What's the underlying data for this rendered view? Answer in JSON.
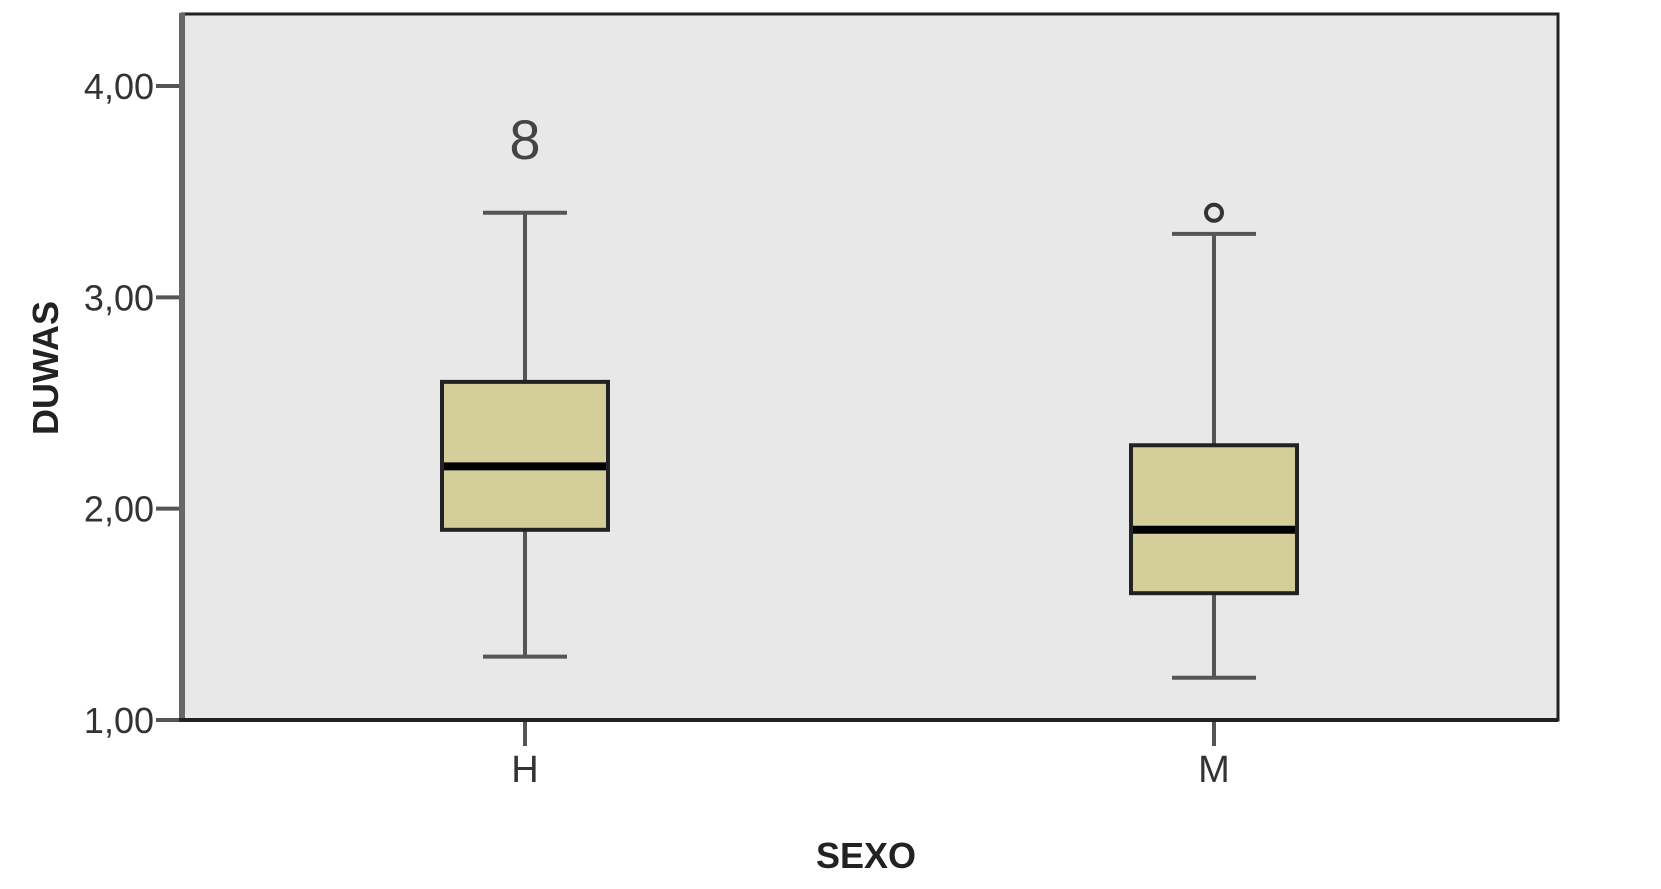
{
  "chart_data": {
    "type": "boxplot",
    "xlabel": "SEXO",
    "ylabel": "DUWAS",
    "ylim": [
      1.0,
      4.35
    ],
    "yticks": [
      {
        "value": 1.0,
        "label": "1,00"
      },
      {
        "value": 2.0,
        "label": "2,00"
      },
      {
        "value": 3.0,
        "label": "3,00"
      },
      {
        "value": 4.0,
        "label": "4,00"
      }
    ],
    "categories": [
      "H",
      "M"
    ],
    "boxes": [
      {
        "category": "H",
        "whisker_low": 1.3,
        "q1": 1.9,
        "median": 2.2,
        "q3": 2.6,
        "whisker_high": 3.4,
        "outliers": [
          {
            "value": 3.75,
            "label": "8",
            "marker": "label"
          }
        ]
      },
      {
        "category": "M",
        "whisker_low": 1.2,
        "q1": 1.6,
        "median": 1.9,
        "q3": 2.3,
        "whisker_high": 3.3,
        "outliers": [
          {
            "value": 3.4,
            "label": "",
            "marker": "circle"
          }
        ]
      }
    ],
    "grid": false,
    "legend": "none",
    "colors": {
      "plot_background": "#e8e8e8",
      "box_fill": "#d3ce9a",
      "box_stroke": "#222222",
      "median": "#000000",
      "whisker": "#555555",
      "axis": "#333333"
    }
  }
}
